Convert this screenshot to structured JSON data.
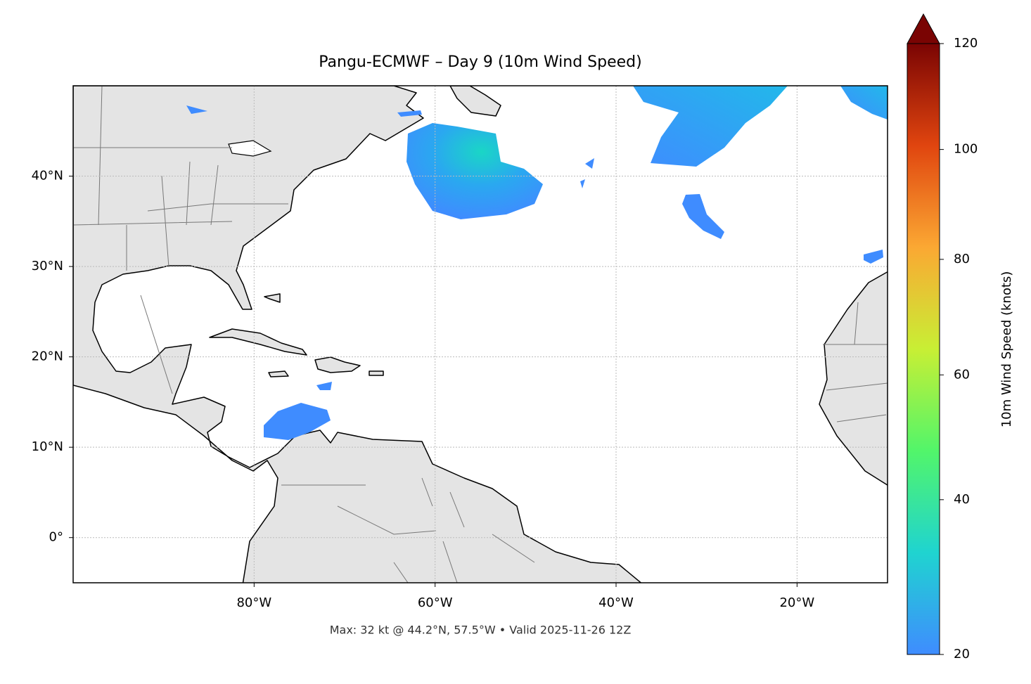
{
  "map": {
    "title": "Pangu-ECMWF – Day 9 (10m Wind Speed)",
    "footer": "Max: 32 kt @ 44.2°N, 57.5°W • Valid 2025-11-26 12Z",
    "xlim": [
      -100,
      -10
    ],
    "ylim": [
      -5,
      50
    ],
    "xticks": [
      {
        "value": -80,
        "label": "80°W"
      },
      {
        "value": -60,
        "label": "60°W"
      },
      {
        "value": -40,
        "label": "40°W"
      },
      {
        "value": -20,
        "label": "20°W"
      }
    ],
    "yticks": [
      {
        "value": 0,
        "label": "0°"
      },
      {
        "value": 10,
        "label": "10°N"
      },
      {
        "value": 20,
        "label": "20°N"
      },
      {
        "value": 30,
        "label": "30°N"
      },
      {
        "value": 40,
        "label": "40°N"
      }
    ],
    "grid": true,
    "colorbar": {
      "label": "10m Wind Speed (knots)",
      "lim": [
        20,
        120
      ],
      "ticks": [
        20,
        40,
        60,
        80,
        100,
        120
      ],
      "extend": "max"
    }
  }
}
